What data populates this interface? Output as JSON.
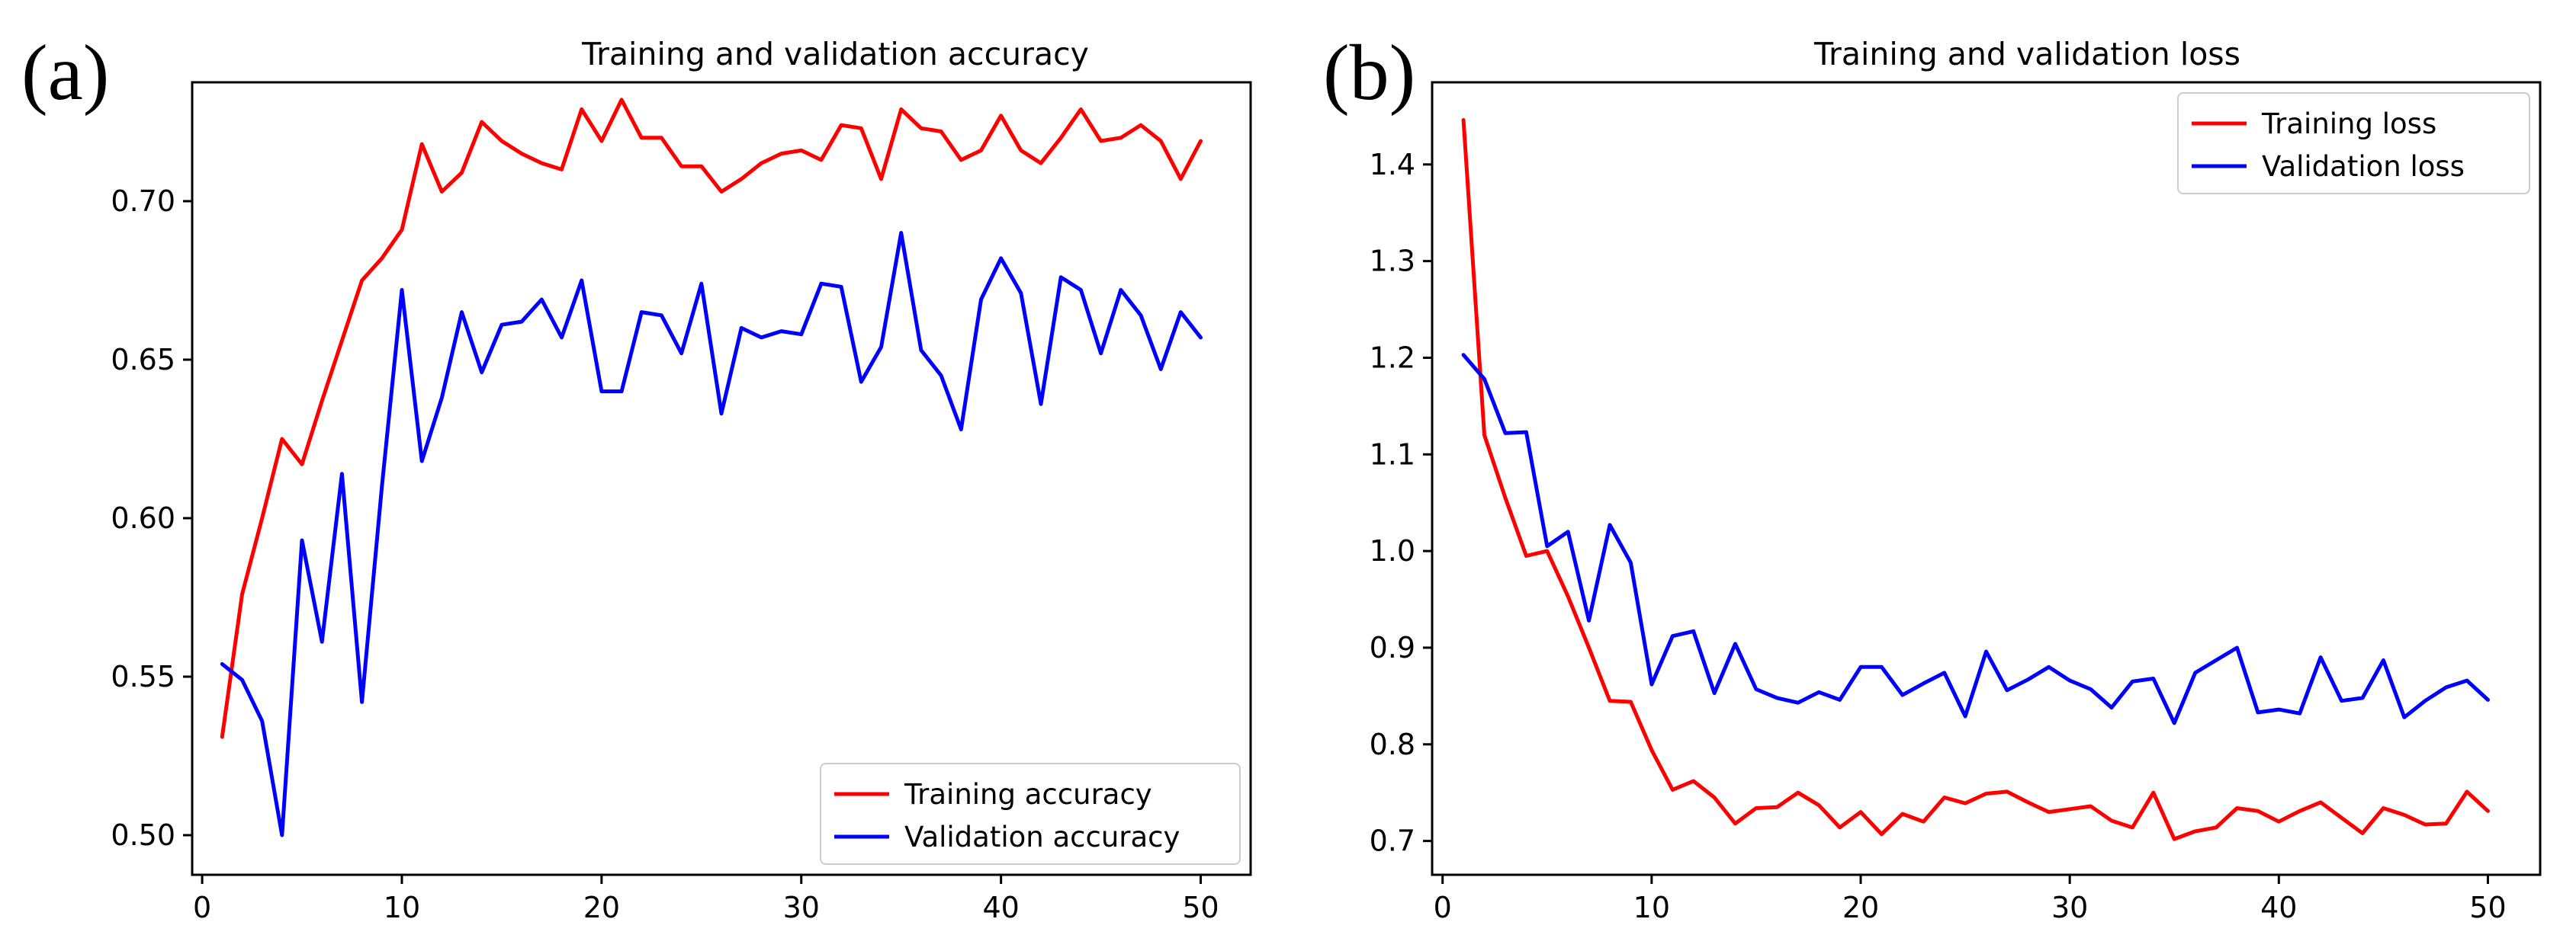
{
  "figure": {
    "panel_a_label": "(a)",
    "panel_b_label": "(b)"
  },
  "chart_data": [
    {
      "type": "line",
      "title": "Training and validation accuracy",
      "xlabel": "",
      "ylabel": "",
      "xlim": [
        -0.5,
        52.5
      ],
      "ylim": [
        0.4875,
        0.7375
      ],
      "xticks": [
        0,
        10,
        20,
        30,
        40,
        50
      ],
      "yticks": [
        0.5,
        0.55,
        0.6,
        0.65,
        0.7
      ],
      "xtick_labels": [
        "0",
        "10",
        "20",
        "30",
        "40",
        "50"
      ],
      "ytick_labels": [
        "0.50",
        "0.55",
        "0.60",
        "0.65",
        "0.70"
      ],
      "grid": false,
      "legend_position": "lower-right",
      "x": [
        1,
        2,
        3,
        4,
        5,
        6,
        7,
        8,
        9,
        10,
        11,
        12,
        13,
        14,
        15,
        16,
        17,
        18,
        19,
        20,
        21,
        22,
        23,
        24,
        25,
        26,
        27,
        28,
        29,
        30,
        31,
        32,
        33,
        34,
        35,
        36,
        37,
        38,
        39,
        40,
        41,
        42,
        43,
        44,
        45,
        46,
        47,
        48,
        49,
        50
      ],
      "series": [
        {
          "name": "Training accuracy",
          "color": "#ff0000",
          "values": [
            0.531,
            0.576,
            0.6,
            0.625,
            0.617,
            0.637,
            0.656,
            0.675,
            0.682,
            0.691,
            0.718,
            0.703,
            0.709,
            0.725,
            0.719,
            0.715,
            0.712,
            0.71,
            0.729,
            0.719,
            0.732,
            0.72,
            0.72,
            0.711,
            0.711,
            0.703,
            0.707,
            0.712,
            0.715,
            0.716,
            0.713,
            0.724,
            0.723,
            0.707,
            0.729,
            0.723,
            0.722,
            0.713,
            0.716,
            0.727,
            0.716,
            0.712,
            0.72,
            0.729,
            0.719,
            0.72,
            0.724,
            0.719,
            0.707,
            0.719
          ]
        },
        {
          "name": "Validation accuracy",
          "color": "#0000ff",
          "values": [
            0.554,
            0.549,
            0.536,
            0.5,
            0.593,
            0.561,
            0.614,
            0.542,
            0.61,
            0.672,
            0.618,
            0.638,
            0.665,
            0.646,
            0.661,
            0.662,
            0.669,
            0.657,
            0.675,
            0.64,
            0.64,
            0.665,
            0.664,
            0.652,
            0.674,
            0.633,
            0.66,
            0.657,
            0.659,
            0.658,
            0.674,
            0.673,
            0.643,
            0.654,
            0.69,
            0.653,
            0.645,
            0.628,
            0.669,
            0.682,
            0.671,
            0.636,
            0.676,
            0.672,
            0.652,
            0.672,
            0.664,
            0.647,
            0.665,
            0.657
          ]
        }
      ]
    },
    {
      "type": "line",
      "title": "Training and validation loss",
      "xlabel": "",
      "ylabel": "",
      "xlim": [
        -0.5,
        52.5
      ],
      "ylim": [
        0.665,
        1.485
      ],
      "xticks": [
        0,
        10,
        20,
        30,
        40,
        50
      ],
      "yticks": [
        0.7,
        0.8,
        0.9,
        1.0,
        1.1,
        1.2,
        1.3,
        1.4
      ],
      "xtick_labels": [
        "0",
        "10",
        "20",
        "30",
        "40",
        "50"
      ],
      "ytick_labels": [
        "0.7",
        "0.8",
        "0.9",
        "1.0",
        "1.1",
        "1.2",
        "1.3",
        "1.4"
      ],
      "grid": false,
      "legend_position": "upper-right",
      "x": [
        1,
        2,
        3,
        4,
        5,
        6,
        7,
        8,
        9,
        10,
        11,
        12,
        13,
        14,
        15,
        16,
        17,
        18,
        19,
        20,
        21,
        22,
        23,
        24,
        25,
        26,
        27,
        28,
        29,
        30,
        31,
        32,
        33,
        34,
        35,
        36,
        37,
        38,
        39,
        40,
        41,
        42,
        43,
        44,
        45,
        46,
        47,
        48,
        49,
        50
      ],
      "series": [
        {
          "name": "Training loss",
          "color": "#ff0000",
          "values": [
            1.446,
            1.12,
            1.055,
            0.995,
            1.0,
            0.953,
            0.9,
            0.845,
            0.844,
            0.794,
            0.753,
            0.762,
            0.745,
            0.718,
            0.734,
            0.735,
            0.75,
            0.737,
            0.714,
            0.73,
            0.707,
            0.728,
            0.72,
            0.745,
            0.739,
            0.749,
            0.751,
            0.74,
            0.73,
            0.733,
            0.736,
            0.721,
            0.714,
            0.75,
            0.702,
            0.71,
            0.714,
            0.734,
            0.731,
            0.72,
            0.731,
            0.74,
            0.724,
            0.708,
            0.734,
            0.727,
            0.717,
            0.718,
            0.751,
            0.731
          ]
        },
        {
          "name": "Validation loss",
          "color": "#0000ff",
          "values": [
            1.203,
            1.178,
            1.122,
            1.123,
            1.005,
            1.02,
            0.928,
            1.027,
            0.988,
            0.862,
            0.912,
            0.917,
            0.853,
            0.904,
            0.857,
            0.848,
            0.843,
            0.854,
            0.846,
            0.88,
            0.88,
            0.851,
            0.863,
            0.874,
            0.829,
            0.896,
            0.856,
            0.867,
            0.88,
            0.866,
            0.857,
            0.838,
            0.865,
            0.868,
            0.822,
            0.874,
            0.887,
            0.9,
            0.833,
            0.836,
            0.832,
            0.89,
            0.845,
            0.848,
            0.887,
            0.828,
            0.845,
            0.859,
            0.866,
            0.846
          ]
        }
      ]
    }
  ]
}
